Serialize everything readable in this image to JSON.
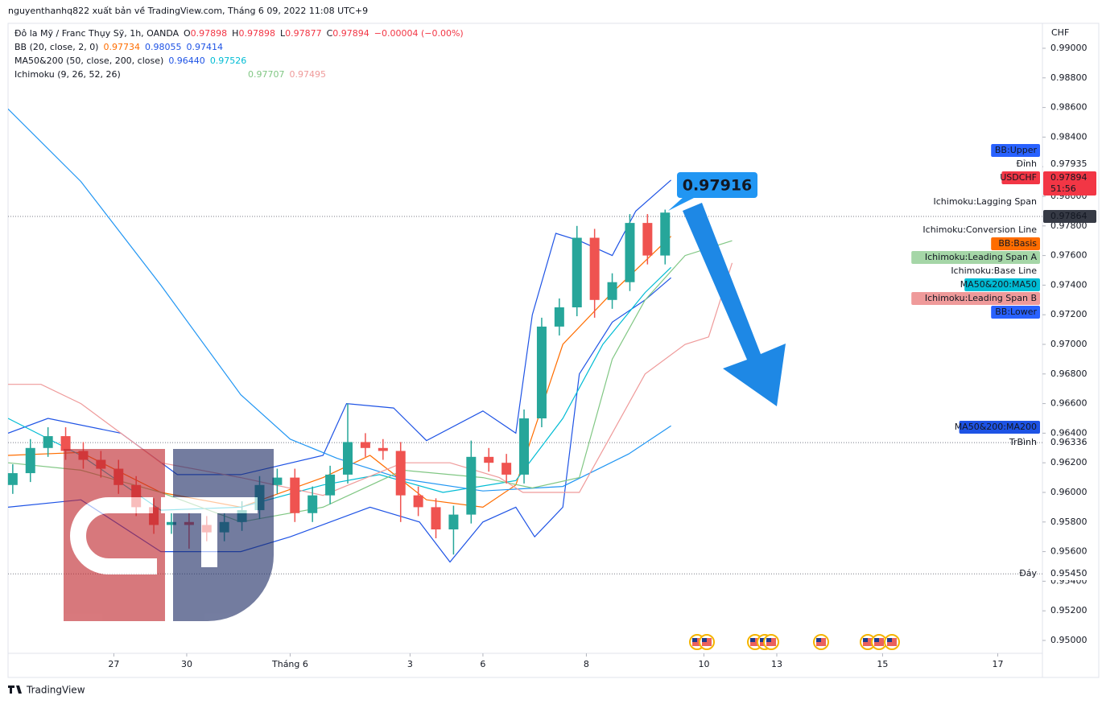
{
  "header": {
    "publisher": "nguyenthanhq822 xuất bản về TradingView.com, Tháng 6 09, 2022 11:08 UTC+9",
    "footer": "TradingView"
  },
  "chart_data": {
    "type": "candlestick",
    "currency": "CHF",
    "legend": [
      {
        "name": "Đô la Mỹ / Franc Thụy Sỹ, 1h, OANDA",
        "prefixes": [
          "O",
          "H",
          "L",
          "C"
        ],
        "values": [
          0.97898,
          0.97898,
          0.97877,
          0.97894
        ],
        "colors": [
          "#f23645",
          "#f23645",
          "#f23645",
          "#f23645"
        ],
        "change": "−0.00004 (−0.00%)"
      },
      {
        "name": "BB (20, close, 2, 0)",
        "values": [
          0.97734,
          0.98055,
          0.97414
        ],
        "colors": [
          "#ff6d00",
          "#1e53e5",
          "#1e53e5"
        ]
      },
      {
        "name": "MA50&200 (50, close, 200, close)",
        "values": [
          0.9644,
          0.97526
        ],
        "value_labels": [
          "0.96440",
          "0.97526"
        ],
        "colors": [
          "#1e53e5",
          "#00bcd4"
        ]
      },
      {
        "name": "Ichimoku (9, 26, 52, 26)",
        "values": [
          0.97707,
          0.97495
        ],
        "colors": [
          "#81c784",
          "#ef9a9a"
        ]
      }
    ],
    "x": [
      2,
      9.5,
      17,
      24.5,
      32,
      39.5,
      47,
      54.5,
      62,
      69.5,
      77,
      84.5,
      92,
      99.5,
      107,
      114.5,
      122,
      129.5,
      137,
      144.5,
      152,
      159.5,
      167,
      174.5,
      182,
      189.5,
      197,
      204.5,
      212,
      219.5,
      227,
      234.5,
      242,
      249.5,
      257,
      264.5,
      272,
      279.5
    ],
    "open": [
      0.9605,
      0.9613,
      0.963,
      0.9638,
      0.9628,
      0.9622,
      0.9616,
      0.9605,
      0.959,
      0.9578,
      0.958,
      0.9578,
      0.9573,
      0.958,
      0.9588,
      0.9605,
      0.961,
      0.9586,
      0.9598,
      0.9612,
      0.9634,
      0.963,
      0.9628,
      0.9598,
      0.959,
      0.9575,
      0.9585,
      0.9624,
      0.962,
      0.9612,
      0.965,
      0.9712,
      0.9725,
      0.9772,
      0.973,
      0.9742,
      0.9782,
      0.976
    ],
    "high": [
      0.9619,
      0.9636,
      0.9644,
      0.9644,
      0.9634,
      0.9628,
      0.9622,
      0.9611,
      0.9596,
      0.9586,
      0.9586,
      0.9584,
      0.9586,
      0.9594,
      0.9611,
      0.9616,
      0.9616,
      0.9604,
      0.9618,
      0.966,
      0.964,
      0.9636,
      0.9634,
      0.9604,
      0.9596,
      0.9591,
      0.9635,
      0.963,
      0.9626,
      0.9656,
      0.9718,
      0.9731,
      0.978,
      0.9778,
      0.9748,
      0.9788,
      0.9788,
      0.9791
    ],
    "low": [
      0.9599,
      0.9607,
      0.9624,
      0.9622,
      0.9616,
      0.961,
      0.9599,
      0.9584,
      0.9572,
      0.9572,
      0.9562,
      0.9567,
      0.9567,
      0.9574,
      0.9582,
      0.9599,
      0.958,
      0.958,
      0.9592,
      0.9606,
      0.9624,
      0.9622,
      0.958,
      0.9584,
      0.9569,
      0.9558,
      0.9579,
      0.9614,
      0.9606,
      0.9606,
      0.9644,
      0.9706,
      0.9719,
      0.9718,
      0.9724,
      0.9736,
      0.9754,
      0.9754
    ],
    "close": [
      0.9613,
      0.963,
      0.9638,
      0.9628,
      0.9622,
      0.9616,
      0.9605,
      0.959,
      0.9578,
      0.958,
      0.9578,
      0.9573,
      0.958,
      0.9588,
      0.9605,
      0.961,
      0.9586,
      0.9598,
      0.9612,
      0.9634,
      0.963,
      0.9628,
      0.9598,
      0.959,
      0.9575,
      0.9585,
      0.9624,
      0.962,
      0.9612,
      0.965,
      0.9712,
      0.9725,
      0.9772,
      0.973,
      0.9742,
      0.9782,
      0.976,
      0.9789
    ],
    "up_color": "#26a69a",
    "down_color": "#ef5350",
    "series": [
      {
        "color": "#1e53e5",
        "x": [
          0,
          17,
          48,
          72,
          99,
          134,
          144,
          164,
          178,
          202,
          216,
          223,
          233,
          243,
          257,
          267,
          282
        ],
        "values": [
          0.964,
          0.965,
          0.964,
          0.9612,
          0.9612,
          0.9625,
          0.966,
          0.9657,
          0.9635,
          0.9655,
          0.964,
          0.972,
          0.9775,
          0.977,
          0.976,
          0.979,
          0.9811
        ]
      },
      {
        "color": "#1e53e5",
        "x": [
          0,
          31,
          65,
          99,
          120,
          154,
          175,
          188,
          202,
          216,
          224,
          236,
          243,
          257,
          271,
          282
        ],
        "values": [
          0.959,
          0.9595,
          0.956,
          0.956,
          0.957,
          0.959,
          0.958,
          0.9553,
          0.958,
          0.959,
          0.957,
          0.959,
          0.968,
          0.9715,
          0.973,
          0.9745
        ]
      },
      {
        "color": "#ff6d00",
        "x": [
          0,
          31,
          65,
          99,
          134,
          154,
          178,
          202,
          216,
          236,
          257,
          282
        ],
        "values": [
          0.9625,
          0.9627,
          0.96,
          0.959,
          0.961,
          0.9625,
          0.9595,
          0.959,
          0.9605,
          0.97,
          0.9735,
          0.9773
        ]
      },
      {
        "color": "#00bcd4",
        "x": [
          0,
          31,
          65,
          99,
          134,
          158,
          185,
          216,
          236,
          253,
          271,
          282
        ],
        "values": [
          0.965,
          0.9625,
          0.9588,
          0.959,
          0.9605,
          0.9612,
          0.96,
          0.9608,
          0.965,
          0.97,
          0.9735,
          0.9752
        ]
      },
      {
        "color": "#2196f3",
        "x": [
          0,
          31,
          65,
          99,
          120,
          140,
          168,
          202,
          236,
          264,
          282
        ],
        "values": [
          0.9859,
          0.981,
          0.974,
          0.9666,
          0.9636,
          0.9623,
          0.9609,
          0.9601,
          0.9604,
          0.9626,
          0.9645
        ]
      },
      {
        "color": "#81c784",
        "x": [
          0,
          31,
          65,
          99,
          134,
          168,
          202,
          223,
          243,
          257,
          271,
          288,
          298,
          308
        ],
        "values": [
          0.962,
          0.9615,
          0.96,
          0.958,
          0.959,
          0.9615,
          0.961,
          0.9603,
          0.961,
          0.969,
          0.973,
          0.976,
          0.9765,
          0.977
        ]
      },
      {
        "color": "#ef9a9a",
        "x": [
          0,
          14,
          31,
          48,
          65,
          82,
          99,
          134,
          168,
          188,
          209,
          219,
          243,
          257,
          271,
          288,
          298,
          308
        ],
        "values": [
          0.9673,
          0.9673,
          0.966,
          0.964,
          0.962,
          0.9615,
          0.961,
          0.9598,
          0.962,
          0.962,
          0.961,
          0.96,
          0.96,
          0.964,
          0.968,
          0.97,
          0.9705,
          0.9755
        ]
      }
    ],
    "xlim": [
      0,
      440
    ],
    "xticks": [
      {
        "value": 45,
        "label": "27"
      },
      {
        "value": 76,
        "label": "30"
      },
      {
        "value": 120,
        "label": "Tháng 6"
      },
      {
        "value": 171,
        "label": "3"
      },
      {
        "value": 202,
        "label": "6"
      },
      {
        "value": 246,
        "label": "8"
      },
      {
        "value": 296,
        "label": "10"
      },
      {
        "value": 327,
        "label": "13"
      },
      {
        "value": 372,
        "label": "15"
      },
      {
        "value": 421,
        "label": "17"
      }
    ],
    "ylim": [
      0.94913,
      0.99163
    ],
    "yticks": [
      {
        "value": 0.95,
        "label": "0.95000"
      },
      {
        "value": 0.952,
        "label": "0.95200"
      },
      {
        "value": 0.954,
        "label": "0.95400"
      },
      {
        "value": 0.956,
        "label": "0.95600"
      },
      {
        "value": 0.958,
        "label": "0.95800"
      },
      {
        "value": 0.96,
        "label": "0.96000"
      },
      {
        "value": 0.962,
        "label": "0.96200"
      },
      {
        "value": 0.964,
        "label": "0.96400"
      },
      {
        "value": 0.966,
        "label": "0.96600"
      },
      {
        "value": 0.968,
        "label": "0.96800"
      },
      {
        "value": 0.97,
        "label": "0.97000"
      },
      {
        "value": 0.972,
        "label": "0.97200"
      },
      {
        "value": 0.974,
        "label": "0.97400"
      },
      {
        "value": 0.976,
        "label": "0.97600"
      },
      {
        "value": 0.978,
        "label": "0.97800"
      },
      {
        "value": 0.98,
        "label": "0.98000"
      },
      {
        "value": 0.982,
        "label": "0.98200"
      },
      {
        "value": 0.984,
        "label": "0.98400"
      },
      {
        "value": 0.986,
        "label": "0.98600"
      },
      {
        "value": 0.988,
        "label": "0.98800"
      },
      {
        "value": 0.99,
        "label": "0.99000"
      }
    ],
    "grid": false,
    "hlines": [
      0.97864,
      0.96336,
      0.9545
    ],
    "markers": [
      {
        "label": "BB:Upper",
        "color": "#2962ff"
      },
      {
        "label": "Đỉnh",
        "value": 0.97935
      },
      {
        "label": "USDCHF",
        "value": 0.97894,
        "countdown": "51:56",
        "color": "#f23645"
      },
      {
        "label": "Ichimoku:Lagging Span"
      },
      {
        "value": 0.97864,
        "color": "#363a45"
      },
      {
        "label": "Ichimoku:Conversion Line"
      },
      {
        "label": "BB:Basis",
        "color": "#ff6d00"
      },
      {
        "label": "Ichimoku:Leading Span A",
        "color": "#a5d6a7"
      },
      {
        "label": "Ichimoku:Base Line"
      },
      {
        "label": "MA50&200:MA50",
        "color": "#00bcd4"
      },
      {
        "label": "Ichimoku:Leading Span B",
        "color": "#ef9a9a"
      },
      {
        "label": "BB:Lower",
        "color": "#2962ff"
      },
      {
        "label": "MA50&200:MA200",
        "color": "#1e53e5"
      },
      {
        "label": "TrBình",
        "value": 0.96336
      },
      {
        "label": "Đáy",
        "value": 0.9545,
        "value_label": "0.95450"
      }
    ],
    "callout": 0.97916
  }
}
